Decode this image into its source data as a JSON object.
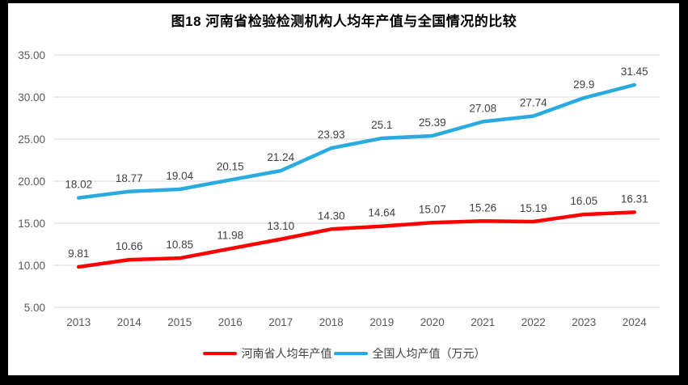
{
  "title": "图18  河南省检验检测机构人均年产值与全国情况的比较",
  "chart_data": {
    "type": "line",
    "title": "图18  河南省检验检测机构人均年产值与全国情况的比较",
    "categories": [
      "2013",
      "2014",
      "2015",
      "2016",
      "2017",
      "2018",
      "2019",
      "2020",
      "2021",
      "2022",
      "2023",
      "2024"
    ],
    "series": [
      {
        "name": "河南省人均年产值",
        "color": "#FE0000",
        "values": [
          9.81,
          10.66,
          10.85,
          11.98,
          13.1,
          14.3,
          14.64,
          15.07,
          15.26,
          15.19,
          16.05,
          16.31
        ],
        "labels": [
          "9.81",
          "10.66",
          "10.85",
          "11.98",
          "13.10",
          "14.30",
          "14.64",
          "15.07",
          "15.26",
          "15.19",
          "16.05",
          "16.31"
        ]
      },
      {
        "name": "全国人均产值（万元）",
        "color": "#29ABE2",
        "values": [
          18.02,
          18.77,
          19.04,
          20.15,
          21.24,
          23.93,
          25.1,
          25.39,
          27.08,
          27.74,
          29.9,
          31.45
        ],
        "labels": [
          "18.02",
          "18.77",
          "19.04",
          "20.15",
          "21.24",
          "23.93",
          "25.1",
          "25.39",
          "27.08",
          "27.74",
          "29.9",
          "31.45"
        ]
      }
    ],
    "ylim": [
      5,
      35
    ],
    "y_ticks": [
      "5.00",
      "10.00",
      "15.00",
      "20.00",
      "25.00",
      "30.00",
      "35.00"
    ],
    "xlabel": "",
    "ylabel": "",
    "grid": true,
    "legend_position": "bottom"
  },
  "colors": {
    "frame": "#000000",
    "background": "#FFFFFF",
    "grid": "#D9D9D9",
    "axis_text": "#595959",
    "data_label": "#404040",
    "title_text": "#000000"
  }
}
